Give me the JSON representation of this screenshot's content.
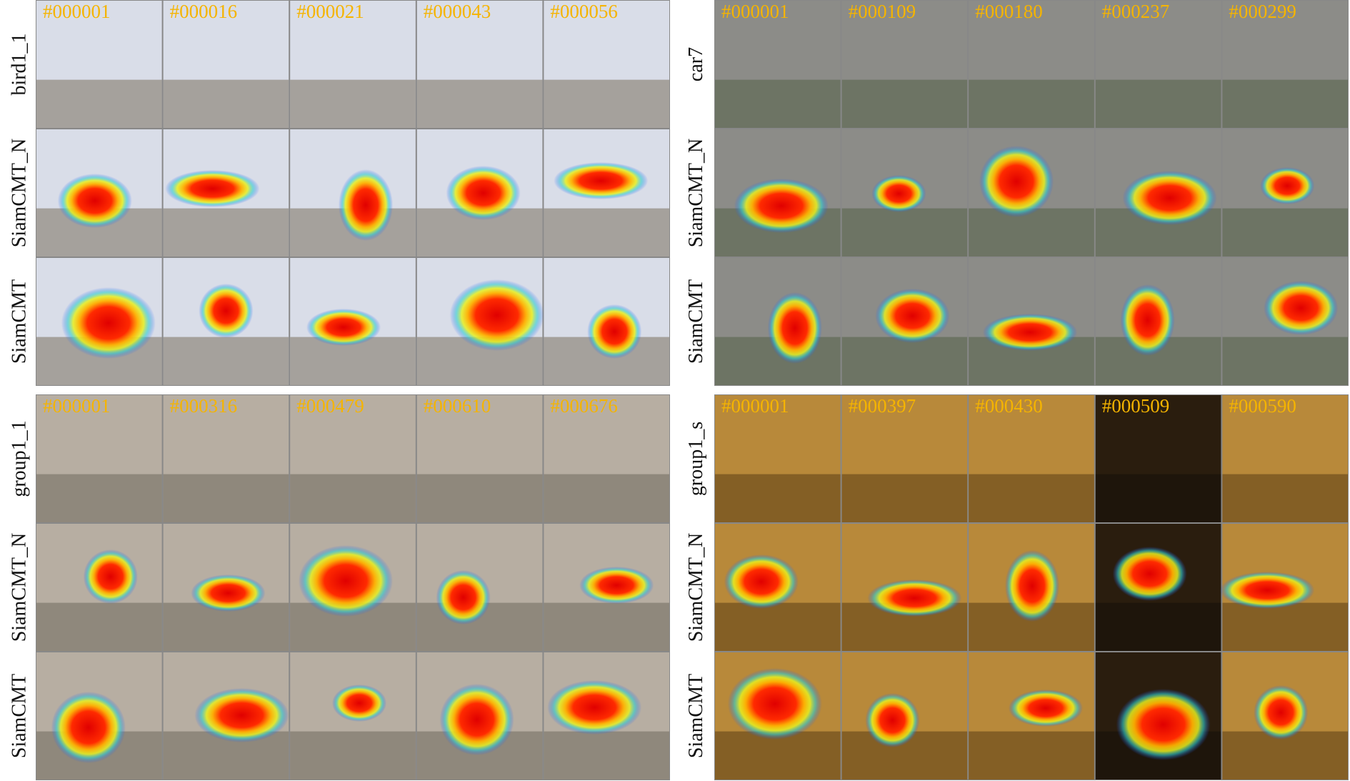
{
  "panels": [
    {
      "sequence": "bird1_1",
      "frames": [
        "#000001",
        "#000016",
        "#000021",
        "#000043",
        "#000056"
      ]
    },
    {
      "sequence": "car7",
      "frames": [
        "#000001",
        "#000109",
        "#000180",
        "#000237",
        "#000299"
      ]
    },
    {
      "sequence": "group1_1",
      "frames": [
        "#000001",
        "#000316",
        "#000479",
        "#000610",
        "#000676"
      ]
    },
    {
      "sequence": "group1_s",
      "frames": [
        "#000001",
        "#000397",
        "#000430",
        "#000509",
        "#000590"
      ]
    }
  ],
  "methods": [
    "SiamCMT_N",
    "SiamCMT"
  ]
}
